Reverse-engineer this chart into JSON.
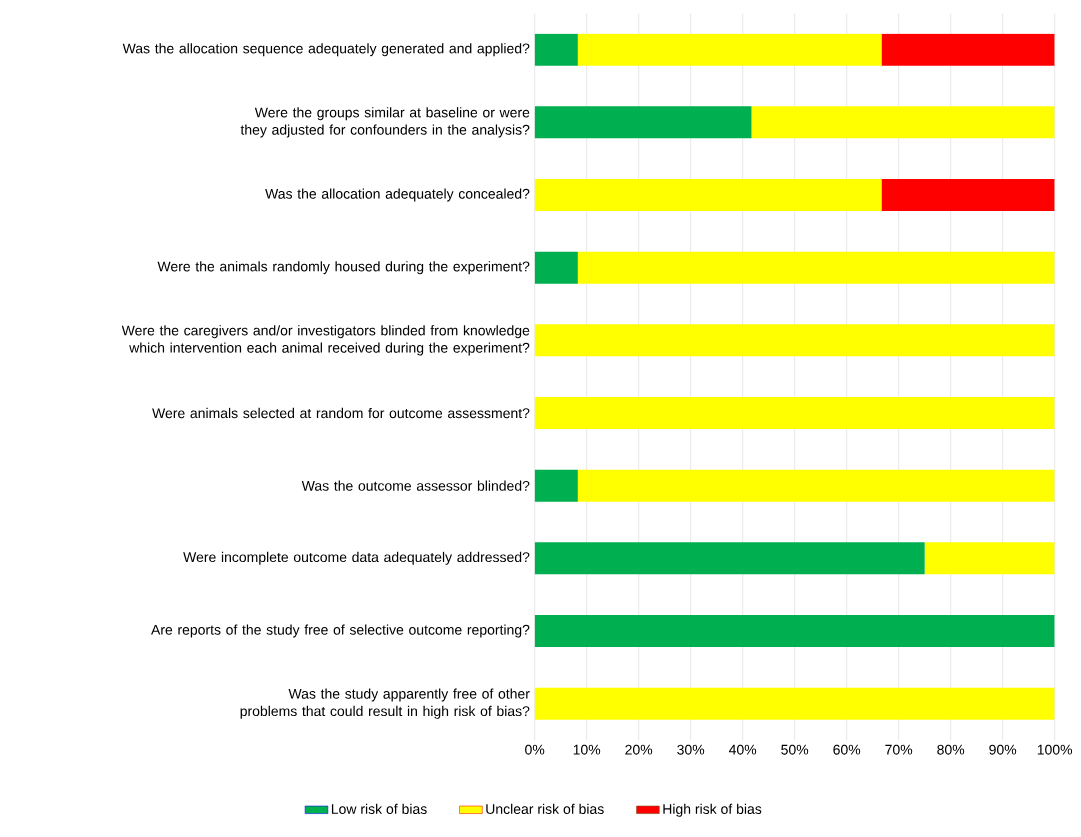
{
  "chart_data": {
    "type": "bar",
    "stacked": true,
    "orientation": "horizontal",
    "categories": [
      "Was the allocation sequence adequately generated and applied?",
      "Were the groups similar at baseline or were they adjusted for confounders in the analysis?",
      "Was the allocation adequately concealed?",
      "Were the animals randomly housed during the experiment?",
      "Were the caregivers and/or investigators blinded from knowledge which intervention each animal received during the experiment?",
      "Were animals selected at random for outcome assessment?",
      "Was the outcome assessor blinded?",
      "Were incomplete outcome data adequately addressed?",
      "Are reports of the study free of selective outcome reporting?",
      "Was the study apparently free of other problems that could result in high risk of bias?"
    ],
    "series": [
      {
        "name": "Low risk of bias",
        "color": "#00b050",
        "values": [
          8.3,
          41.7,
          0,
          8.3,
          0,
          0,
          8.3,
          75,
          100,
          0
        ]
      },
      {
        "name": "Unclear risk of bias",
        "color": "#ffff00",
        "values": [
          58.4,
          58.3,
          66.7,
          91.7,
          100,
          100,
          91.7,
          25,
          0,
          100
        ]
      },
      {
        "name": "High risk of bias",
        "color": "#ff0000",
        "values": [
          33.3,
          0,
          33.3,
          0,
          0,
          0,
          0,
          0,
          0,
          0
        ]
      }
    ],
    "xlim": [
      0,
      100
    ],
    "xticks": [
      {
        "value": 0,
        "label": "0%"
      },
      {
        "value": 10,
        "label": "10%"
      },
      {
        "value": 20,
        "label": "20%"
      },
      {
        "value": 30,
        "label": "30%"
      },
      {
        "value": 40,
        "label": "40%"
      },
      {
        "value": 50,
        "label": "50%"
      },
      {
        "value": 60,
        "label": "60%"
      },
      {
        "value": 70,
        "label": "70%"
      },
      {
        "value": 80,
        "label": "80%"
      },
      {
        "value": 90,
        "label": "90%"
      },
      {
        "value": 100,
        "label": "100%"
      }
    ],
    "grid": "x",
    "legend": "bottom"
  }
}
